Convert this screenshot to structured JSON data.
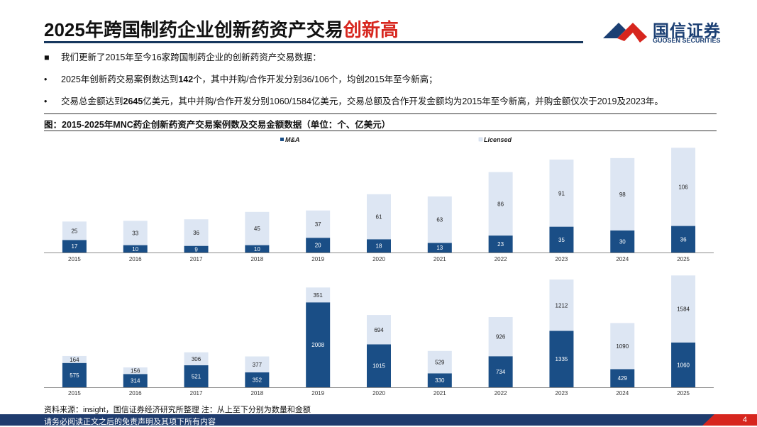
{
  "title": {
    "main": "2025年跨国制药企业创新药资产交易",
    "highlight": "创新高"
  },
  "logo": {
    "cn": "国信证券",
    "en": "GUOSEN SECURITIES"
  },
  "bullets": [
    {
      "marker": "■",
      "parts": [
        {
          "t": "我们更新了2015年至今16家跨国制药企业的创新药资产交易数据：",
          "b": false
        }
      ]
    },
    {
      "marker": "•",
      "parts": [
        {
          "t": "2025年创新药交易案例数达到",
          "b": false
        },
        {
          "t": "142",
          "b": true
        },
        {
          "t": "个，其中并购/合作开发分别36/106个，均创2015年至今新高；",
          "b": false
        }
      ]
    },
    {
      "marker": "•",
      "parts": [
        {
          "t": "交易总金额达到",
          "b": false
        },
        {
          "t": "2645",
          "b": true
        },
        {
          "t": "亿美元，其中并购/合作开发分别1060/1584亿美元，交易总额及合作开发金额均为2015年至今新高，并购金额仅次于2019及2023年。",
          "b": false
        }
      ]
    }
  ],
  "figure_title": "图：2015-2025年MNC药企创新药资产交易案例数及交易金额数据（单位：个、亿美元）",
  "colors": {
    "ma": "#1a4e86",
    "licensed": "#dde6f3",
    "title_accent": "#d7261e",
    "navy": "#1f3c6e"
  },
  "chart_data": [
    {
      "type": "bar",
      "stacked": true,
      "title": "交易案例数",
      "legend": [
        "M&A",
        "Licensed"
      ],
      "legend_position": "top",
      "categories": [
        "2015",
        "2016",
        "2017",
        "2018",
        "2019",
        "2020",
        "2021",
        "2022",
        "2023",
        "2024",
        "2025"
      ],
      "series": [
        {
          "name": "M&A",
          "values": [
            17,
            10,
            9,
            10,
            20,
            18,
            13,
            23,
            35,
            30,
            36
          ]
        },
        {
          "name": "Licensed",
          "values": [
            25,
            33,
            36,
            45,
            37,
            61,
            63,
            86,
            91,
            98,
            106
          ]
        }
      ],
      "ylim": [
        0,
        150
      ]
    },
    {
      "type": "bar",
      "stacked": true,
      "title": "交易金额",
      "categories": [
        "2015",
        "2016",
        "2017",
        "2018",
        "2019",
        "2020",
        "2021",
        "2022",
        "2023",
        "2024",
        "2025"
      ],
      "series": [
        {
          "name": "M&A",
          "values": [
            575,
            314,
            521,
            352,
            2008,
            1015,
            330,
            734,
            1335,
            429,
            1060
          ]
        },
        {
          "name": "Licensed",
          "values": [
            164,
            156,
            306,
            377,
            351,
            694,
            529,
            926,
            1212,
            1090,
            1584
          ]
        }
      ],
      "ylim": [
        0,
        2700
      ]
    }
  ],
  "source": "资料来源：insight，国信证券经济研究所整理 注：从上至下分别为数量和金额",
  "footer": {
    "disclaimer": "请务必阅读正文之后的免责声明及其项下所有内容",
    "page": "4"
  }
}
